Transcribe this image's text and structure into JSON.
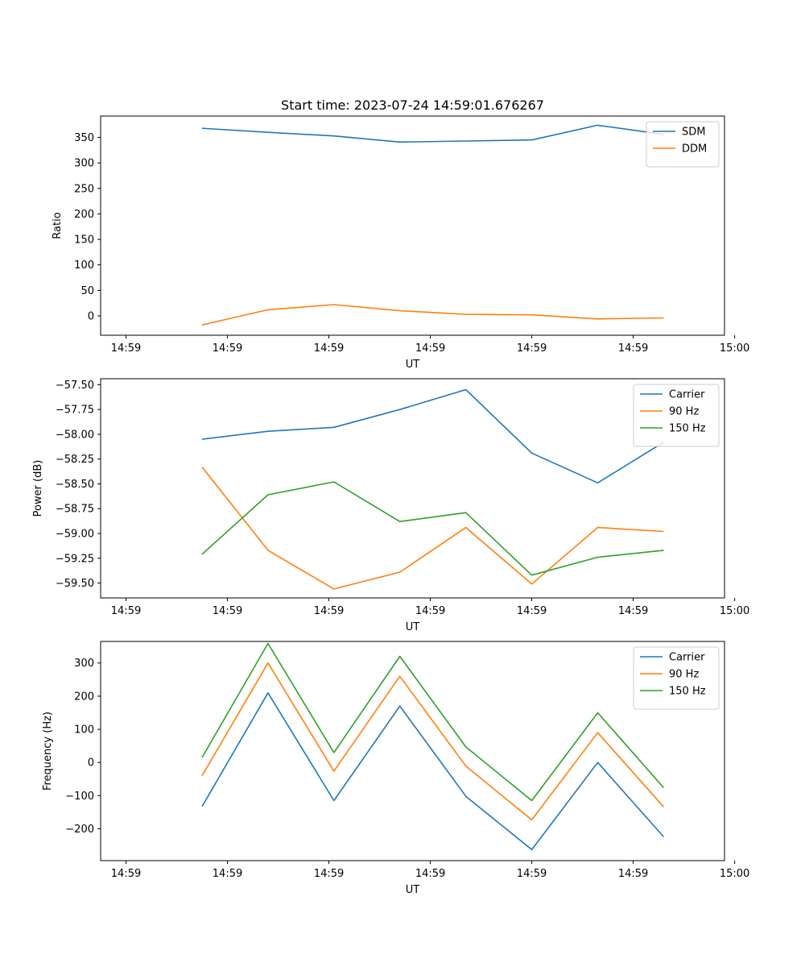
{
  "figure": {
    "title": "Start time: 2023-07-24 14:59:01.676267"
  },
  "colors": {
    "blue": "#1f77b4",
    "orange": "#ff7f0e",
    "green": "#2ca02c"
  },
  "chart_data": [
    {
      "type": "line",
      "title": "Start time: 2023-07-24 14:59:01.676267",
      "xlabel": "UT",
      "ylabel": "Ratio",
      "x": [
        0.75,
        1.4,
        2.05,
        2.7,
        3.35,
        4.0,
        4.65,
        5.3
      ],
      "xlim": [
        -0.25,
        5.9
      ],
      "xticks": [
        0,
        1,
        2,
        3,
        4,
        5,
        6
      ],
      "xtick_labels": [
        "14:59",
        "14:59",
        "14:59",
        "14:59",
        "14:59",
        "14:59",
        "15:00"
      ],
      "ylim": [
        -38,
        392
      ],
      "yticks": [
        0,
        50,
        100,
        150,
        200,
        250,
        300,
        350
      ],
      "ytick_labels": [
        "0",
        "50",
        "100",
        "150",
        "200",
        "250",
        "300",
        "350"
      ],
      "legend_position": "top-right",
      "series": [
        {
          "name": "SDM",
          "color": "#1f77b4",
          "values": [
            368,
            360,
            353,
            341,
            343,
            345,
            374,
            356
          ]
        },
        {
          "name": "DDM",
          "color": "#ff7f0e",
          "values": [
            -18,
            12,
            22,
            10,
            3,
            2,
            -6,
            -4
          ]
        }
      ]
    },
    {
      "type": "line",
      "xlabel": "UT",
      "ylabel": "Power (dB)",
      "x": [
        0.75,
        1.4,
        2.05,
        2.7,
        3.35,
        4.0,
        4.65,
        5.3
      ],
      "xlim": [
        -0.25,
        5.9
      ],
      "xticks": [
        0,
        1,
        2,
        3,
        4,
        5,
        6
      ],
      "xtick_labels": [
        "14:59",
        "14:59",
        "14:59",
        "14:59",
        "14:59",
        "14:59",
        "15:00"
      ],
      "ylim": [
        -59.65,
        -57.44
      ],
      "yticks": [
        -59.5,
        -59.25,
        -59.0,
        -58.75,
        -58.5,
        -58.25,
        -58.0,
        -57.75,
        -57.5
      ],
      "ytick_labels": [
        "−59.50",
        "−59.25",
        "−59.00",
        "−58.75",
        "−58.50",
        "−58.25",
        "−58.00",
        "−57.75",
        "−57.50"
      ],
      "legend_position": "top-right",
      "series": [
        {
          "name": "Carrier",
          "color": "#1f77b4",
          "values": [
            -58.05,
            -57.97,
            -57.93,
            -57.75,
            -57.55,
            -58.19,
            -58.49,
            -58.08
          ]
        },
        {
          "name": "90 Hz",
          "color": "#ff7f0e",
          "values": [
            -58.33,
            -59.17,
            -59.56,
            -59.39,
            -58.94,
            -59.51,
            -58.94,
            -58.98
          ]
        },
        {
          "name": "150 Hz",
          "color": "#2ca02c",
          "values": [
            -59.21,
            -58.61,
            -58.48,
            -58.88,
            -58.79,
            -59.42,
            -59.24,
            -59.17
          ]
        }
      ]
    },
    {
      "type": "line",
      "xlabel": "UT",
      "ylabel": "Frequency (Hz)",
      "x": [
        0.75,
        1.4,
        2.05,
        2.7,
        3.35,
        4.0,
        4.65,
        5.3
      ],
      "xlim": [
        -0.25,
        5.9
      ],
      "xticks": [
        0,
        1,
        2,
        3,
        4,
        5,
        6
      ],
      "xtick_labels": [
        "14:59",
        "14:59",
        "14:59",
        "14:59",
        "14:59",
        "14:59",
        "15:00"
      ],
      "ylim": [
        -296,
        365
      ],
      "yticks": [
        -200,
        -100,
        0,
        100,
        200,
        300
      ],
      "ytick_labels": [
        "−200",
        "−100",
        "0",
        "100",
        "200",
        "300"
      ],
      "legend_position": "top-right",
      "series": [
        {
          "name": "Carrier",
          "color": "#1f77b4",
          "values": [
            -133,
            210,
            -115,
            170,
            -102,
            -263,
            0,
            -224
          ]
        },
        {
          "name": "90 Hz",
          "color": "#ff7f0e",
          "values": [
            -40,
            300,
            -26,
            260,
            -11,
            -173,
            90,
            -134
          ]
        },
        {
          "name": "150 Hz",
          "color": "#2ca02c",
          "values": [
            15,
            359,
            30,
            320,
            47,
            -115,
            150,
            -76
          ]
        }
      ]
    }
  ]
}
